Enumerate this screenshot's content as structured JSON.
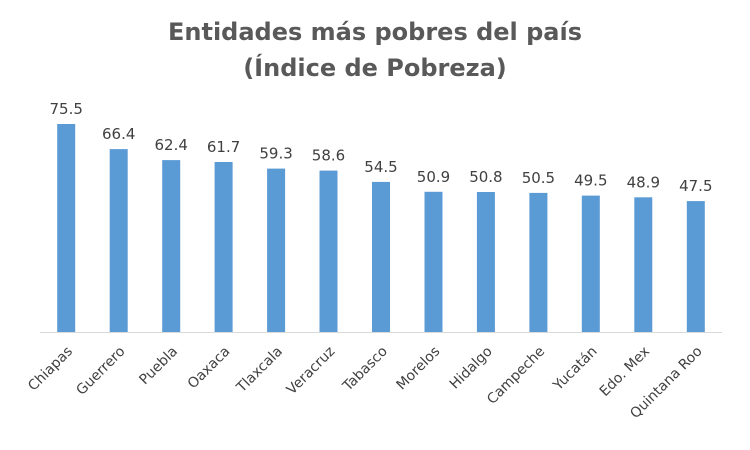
{
  "chart_data": {
    "type": "bar",
    "title_line1": "Entidades más pobres del país",
    "title_line2": "(Índice de Pobreza)",
    "categories": [
      "Chiapas",
      "Guerrero",
      "Puebla",
      "Oaxaca",
      "Tlaxcala",
      "Veracruz",
      "Tabasco",
      "Morelos",
      "Hidalgo",
      "Campeche",
      "Yucatán",
      "Edo. Mex",
      "Quintana Roo"
    ],
    "values": [
      75.5,
      66.4,
      62.4,
      61.7,
      59.3,
      58.6,
      54.5,
      50.9,
      50.8,
      50.5,
      49.5,
      48.9,
      47.5
    ],
    "value_labels": [
      "75.5",
      "66.4",
      "62.4",
      "61.7",
      "59.3",
      "58.6",
      "54.5",
      "50.9",
      "50.8",
      "50.5",
      "49.5",
      "48.9",
      "47.5"
    ],
    "ylim": [
      0,
      80
    ],
    "grid": false,
    "legend": "none",
    "bar_color": "#5B9BD5",
    "axis_color": "#D9D9D9",
    "text_color": "#404040",
    "title_color": "#595959"
  }
}
